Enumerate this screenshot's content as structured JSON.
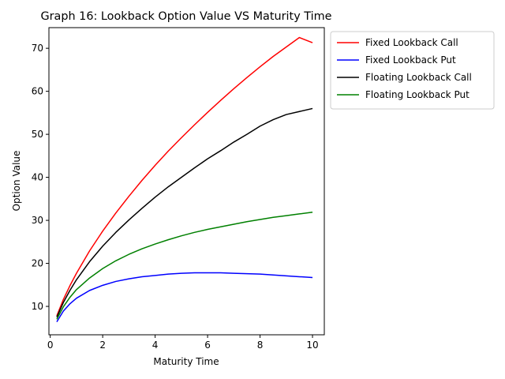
{
  "chart_data": {
    "type": "line",
    "title": "Graph 16: Lookback Option Value VS Maturity Time",
    "xlabel": "Maturity Time",
    "ylabel": "Option Value",
    "xlim": [
      -0.05,
      10.45
    ],
    "ylim": [
      3.4,
      74.8
    ],
    "xticks": [
      0,
      2,
      4,
      6,
      8,
      10
    ],
    "yticks": [
      10,
      20,
      30,
      40,
      50,
      60,
      70
    ],
    "grid": false,
    "legend_position": "outside-top-right",
    "x": [
      0.25,
      0.5,
      0.75,
      1,
      1.5,
      2,
      2.5,
      3,
      3.5,
      4,
      4.5,
      5,
      5.5,
      6,
      6.5,
      7,
      7.5,
      8,
      8.5,
      9,
      9.5,
      10
    ],
    "series": [
      {
        "name": "Fixed Lookback Call",
        "color": "#ff0000",
        "values": [
          7.8,
          11.6,
          14.8,
          17.7,
          22.9,
          27.5,
          31.7,
          35.6,
          39.3,
          42.8,
          46.1,
          49.2,
          52.2,
          55.1,
          57.9,
          60.6,
          63.2,
          65.7,
          68.1,
          70.3,
          72.5,
          71.3
        ]
      },
      {
        "name": "Fixed Lookback Put",
        "color": "#0000ff",
        "values": [
          6.4,
          8.9,
          10.6,
          11.9,
          13.7,
          14.9,
          15.8,
          16.4,
          16.9,
          17.2,
          17.5,
          17.7,
          17.8,
          17.8,
          17.8,
          17.7,
          17.6,
          17.5,
          17.3,
          17.1,
          16.9,
          16.7
        ]
      },
      {
        "name": "Floating Lookback Call",
        "color": "#000000",
        "values": [
          7.5,
          10.9,
          13.7,
          16.2,
          20.4,
          24.0,
          27.2,
          30.1,
          32.8,
          35.4,
          37.8,
          40.0,
          42.2,
          44.3,
          46.2,
          48.2,
          50.0,
          51.9,
          53.4,
          54.6,
          55.3,
          56.0
        ]
      },
      {
        "name": "Floating Lookback Put",
        "color": "#008000",
        "values": [
          7.0,
          9.9,
          12.1,
          13.9,
          16.6,
          18.8,
          20.6,
          22.1,
          23.4,
          24.5,
          25.5,
          26.4,
          27.2,
          27.9,
          28.5,
          29.1,
          29.7,
          30.2,
          30.7,
          31.1,
          31.5,
          31.9
        ]
      }
    ]
  }
}
